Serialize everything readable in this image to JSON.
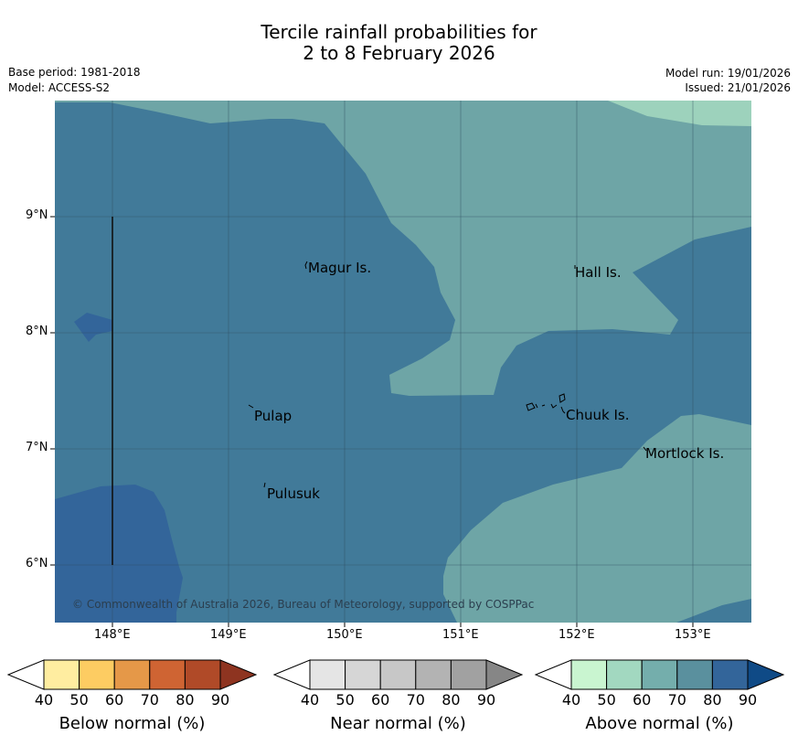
{
  "title": {
    "line1": "Tercile rainfall probabilities for",
    "line2": "2 to 8 February 2026"
  },
  "meta": {
    "base_period": "Base period: 1981-2018",
    "model": "Model: ACCESS-S2",
    "model_run": "Model run: 19/01/2026",
    "issued": "Issued: 21/01/2026"
  },
  "map": {
    "lat_ticks": [
      "9°N",
      "8°N",
      "7°N",
      "6°N"
    ],
    "lon_ticks": [
      "148°E",
      "149°E",
      "150°E",
      "151°E",
      "152°E",
      "153°E"
    ],
    "places": {
      "magur": "Magur Is.",
      "hall": "Hall Is.",
      "pulap": "Pulap",
      "chuuk": "Chuuk Is.",
      "mortlock": "Mortlock Is.",
      "pulusuk": "Pulusuk"
    },
    "copyright": "© Commonwealth of Australia 2026, Bureau of Meteorology, supported by COSPPac"
  },
  "legend": {
    "below": {
      "label": "Below normal (%)",
      "ticks": [
        "40",
        "50",
        "60",
        "70",
        "80",
        "90"
      ],
      "colors": [
        "#ffeda0",
        "#fdcc62",
        "#e59848",
        "#cf6433",
        "#b04a28",
        "#8e3420"
      ]
    },
    "near": {
      "label": "Near normal (%)",
      "ticks": [
        "40",
        "50",
        "60",
        "70",
        "80",
        "90"
      ],
      "colors": [
        "#e5e5e5",
        "#d6d6d6",
        "#c7c7c7",
        "#b3b3b3",
        "#a1a1a1",
        "#868686"
      ]
    },
    "above": {
      "label": "Above normal (%)",
      "ticks": [
        "40",
        "50",
        "60",
        "70",
        "80",
        "90"
      ],
      "colors": [
        "#c9f5d0",
        "#a2d8c0",
        "#74aeac",
        "#5a909e",
        "#33659a",
        "#0f4a86"
      ]
    }
  }
}
